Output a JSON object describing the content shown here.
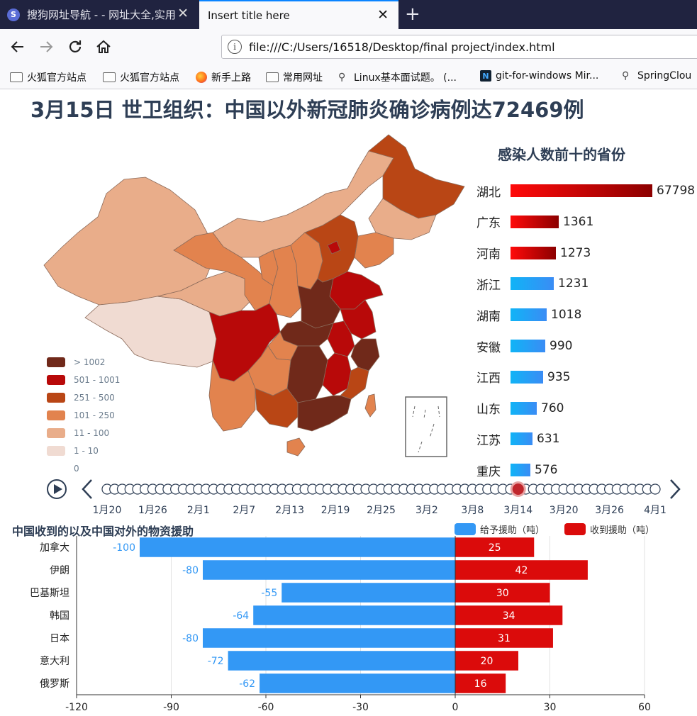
{
  "browser": {
    "tabs": [
      {
        "label": "搜狗网址导航 - - 网址大全,实用",
        "active": false
      },
      {
        "label": "Insert title here",
        "active": true
      }
    ],
    "close_glyph": "✕",
    "new_tab_glyph": "+",
    "url": "file:///C:/Users/16518/Desktop/final project/index.html",
    "bookmarks": [
      {
        "label": "火狐官方站点",
        "icon": "folder-icon"
      },
      {
        "label": "火狐官方站点",
        "icon": "folder-icon"
      },
      {
        "label": "新手上路",
        "icon": "firefox-icon"
      },
      {
        "label": "常用网址",
        "icon": "folder-icon"
      },
      {
        "label": "Linux基本面试题。 (...",
        "icon": "page-icon"
      },
      {
        "label": "git-for-windows Mir...",
        "icon": "github-icon"
      },
      {
        "label": "SpringClou",
        "icon": "page-icon"
      }
    ]
  },
  "page": {
    "headline": "3月15日  世卫组织：中国以外新冠肺炎确诊病例达72469例"
  },
  "map": {
    "legend": [
      {
        "label": "> 1002",
        "color": "#70291a"
      },
      {
        "label": "501 - 1001",
        "color": "#b80909"
      },
      {
        "label": "251 - 500",
        "color": "#b94615"
      },
      {
        "label": "101 - 250",
        "color": "#e2834e"
      },
      {
        "label": "11 - 100",
        "color": "#e9ad8a"
      },
      {
        "label": "1 - 10",
        "color": "#f0dbd2"
      },
      {
        "label": "0",
        "color": "#ffffff"
      }
    ]
  },
  "ranking": {
    "title": "感染人数前十的省份",
    "max": 67798,
    "items": [
      {
        "name": "湖北",
        "value": 67798,
        "color": "red"
      },
      {
        "name": "广东",
        "value": 1361,
        "color": "red"
      },
      {
        "name": "河南",
        "value": 1273,
        "color": "red"
      },
      {
        "name": "浙江",
        "value": 1231,
        "color": "blue"
      },
      {
        "name": "湖南",
        "value": 1018,
        "color": "blue"
      },
      {
        "name": "安徽",
        "value": 990,
        "color": "blue"
      },
      {
        "name": "江西",
        "value": 935,
        "color": "blue"
      },
      {
        "name": "山东",
        "value": 760,
        "color": "blue"
      },
      {
        "name": "江苏",
        "value": 631,
        "color": "blue"
      },
      {
        "name": "重庆",
        "value": 576,
        "color": "blue"
      }
    ]
  },
  "timeline": {
    "labels": [
      "1月20",
      "1月26",
      "2月1",
      "2月7",
      "2月13",
      "2月19",
      "2月25",
      "3月2",
      "3月8",
      "3月14",
      "3月20",
      "3月26",
      "4月1"
    ],
    "dot_count": 73,
    "current_index": 54
  },
  "chart_data": {
    "type": "bar",
    "title": "中国收到的以及中国对外的物资援助",
    "categories": [
      "加拿大",
      "伊朗",
      "巴基斯坦",
      "韩国",
      "日本",
      "意大利",
      "俄罗斯"
    ],
    "series": [
      {
        "name": "给予援助（吨）",
        "values": [
          -100,
          -80,
          -55,
          -64,
          -80,
          -72,
          -62
        ],
        "color": "#3398f5"
      },
      {
        "name": "收到援助（吨）",
        "values": [
          25,
          42,
          30,
          34,
          31,
          20,
          16
        ],
        "color": "#db0b0b"
      }
    ],
    "xlim": [
      -120,
      60
    ],
    "xticks": [
      -120,
      -90,
      -60,
      -30,
      0,
      30,
      60
    ],
    "grid": true,
    "legend_position": "top-right"
  }
}
